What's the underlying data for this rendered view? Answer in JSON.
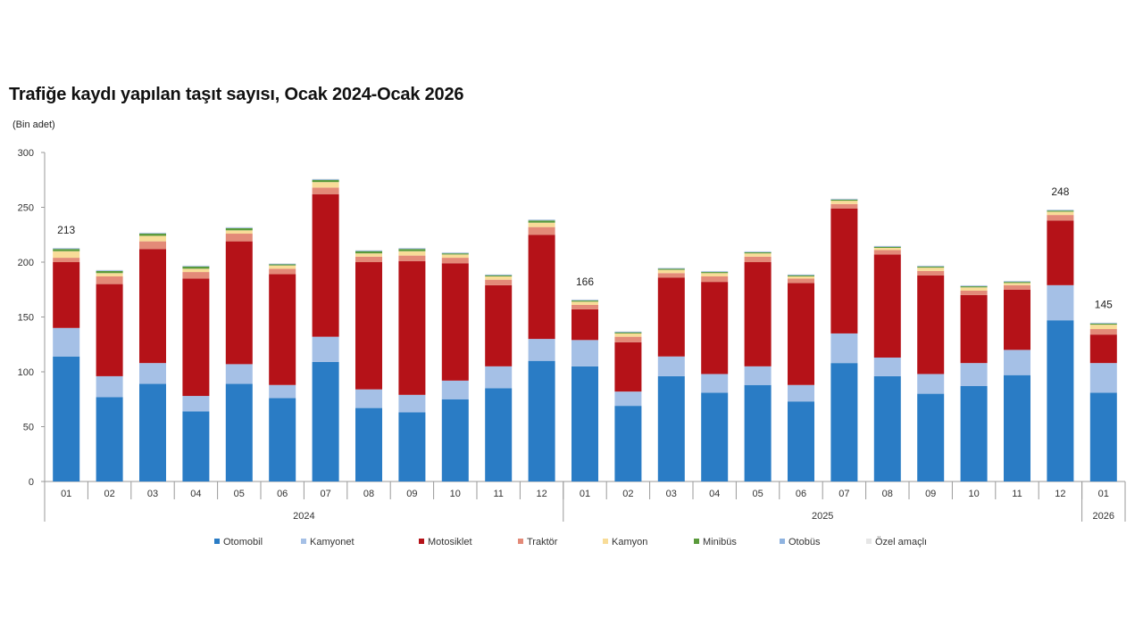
{
  "chart_data": {
    "type": "bar",
    "stacked": true,
    "title": "Trafiğe kaydı yapılan taşıt sayısı, Ocak 2024-Ocak 2026",
    "ylabel": "(Bin adet)",
    "xlabel": "",
    "ylim": [
      0,
      300
    ],
    "yticks": [
      0,
      50,
      100,
      150,
      200,
      250,
      300
    ],
    "grid": false,
    "legend_position": "bottom",
    "categories": [
      "01",
      "02",
      "03",
      "04",
      "05",
      "06",
      "07",
      "08",
      "09",
      "10",
      "11",
      "12",
      "01",
      "02",
      "03",
      "04",
      "05",
      "06",
      "07",
      "08",
      "09",
      "10",
      "11",
      "12",
      "01"
    ],
    "year_groups": [
      {
        "label": "2024",
        "count": 12
      },
      {
        "label": "2025",
        "count": 12
      },
      {
        "label": "2026",
        "count": 1
      }
    ],
    "series": [
      {
        "name": "Otomobil",
        "color": "#2a7cc5",
        "values": [
          114,
          77,
          89,
          64,
          89,
          76,
          109,
          67,
          63,
          75,
          85,
          110,
          105,
          69,
          96,
          81,
          88,
          73,
          108,
          96,
          80,
          87,
          97,
          147,
          81
        ]
      },
      {
        "name": "Kamyonet",
        "color": "#a5c0e6",
        "values": [
          26,
          19,
          19,
          14,
          18,
          12,
          23,
          17,
          16,
          17,
          20,
          20,
          24,
          13,
          18,
          17,
          17,
          15,
          27,
          17,
          18,
          21,
          23,
          32,
          27
        ]
      },
      {
        "name": "Motosiklet",
        "color": "#b51218",
        "values": [
          60,
          84,
          104,
          107,
          112,
          101,
          130,
          116,
          122,
          107,
          74,
          95,
          28,
          45,
          72,
          84,
          95,
          93,
          114,
          94,
          90,
          62,
          55,
          59,
          26
        ]
      },
      {
        "name": "Traktör",
        "color": "#e38a78",
        "values": [
          4,
          7,
          7,
          6,
          7,
          5,
          6,
          5,
          5,
          5,
          5,
          7,
          4,
          5,
          4,
          5,
          5,
          4,
          4,
          4,
          4,
          4,
          4,
          5,
          5
        ]
      },
      {
        "name": "Kamyon",
        "color": "#f8dc98",
        "values": [
          6,
          3,
          5,
          3,
          3,
          3,
          5,
          3,
          4,
          3,
          3,
          4,
          3,
          3,
          3,
          3,
          3,
          2,
          3,
          2,
          3,
          3,
          2,
          3,
          4
        ]
      },
      {
        "name": "Minibüs",
        "color": "#5a9a3b",
        "values": [
          2,
          2,
          2,
          2,
          2,
          1,
          2,
          2,
          2,
          1,
          1,
          2,
          1,
          1,
          1,
          1,
          1,
          1,
          1,
          1,
          1,
          1,
          1,
          1,
          1
        ]
      },
      {
        "name": "Otobüs",
        "color": "#8fb3e0",
        "values": [
          0.6,
          0.6,
          0.6,
          0.6,
          0.6,
          0.6,
          0.6,
          0.6,
          0.6,
          0.6,
          0.6,
          0.6,
          0.6,
          0.6,
          0.6,
          0.6,
          0.6,
          0.6,
          0.6,
          0.6,
          0.6,
          0.6,
          0.6,
          0.6,
          0.6
        ]
      },
      {
        "name": "Özel amaçlı",
        "color": "#e6e6e6",
        "values": [
          0.4,
          0.4,
          0.4,
          0.4,
          0.4,
          0.4,
          0.4,
          0.4,
          0.4,
          0.4,
          0.4,
          0.4,
          0.4,
          0.4,
          0.4,
          0.4,
          0.4,
          0.4,
          0.4,
          0.4,
          0.4,
          0.4,
          0.4,
          0.4,
          0.4
        ]
      }
    ],
    "data_labels": [
      {
        "index": 0,
        "text": "213"
      },
      {
        "index": 12,
        "text": "166"
      },
      {
        "index": 23,
        "text": "248"
      },
      {
        "index": 24,
        "text": "145"
      }
    ]
  }
}
